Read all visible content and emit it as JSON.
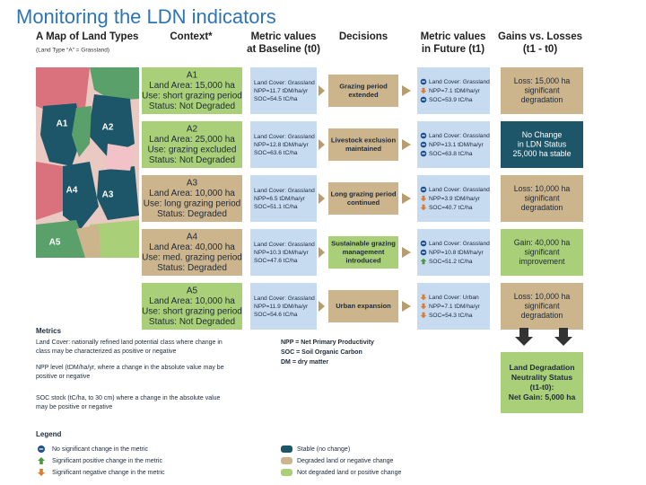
{
  "title": "Monitoring the LDN indicators",
  "headers": [
    {
      "lines": [
        "A Map of Land Types"
      ],
      "note": "(Land Type “A” = Grassland)"
    },
    {
      "lines": [
        "Context*"
      ]
    },
    {
      "lines": [
        "Metric values",
        "at Baseline (t0)"
      ]
    },
    {
      "lines": [
        "Decisions"
      ]
    },
    {
      "lines": [
        "Metric values",
        "in Future (t1)"
      ]
    },
    {
      "lines": [
        "Gains vs. Losses",
        "(t1 - t0)"
      ]
    }
  ],
  "map": {
    "labels": [
      "A1",
      "A2",
      "A3",
      "A4",
      "A5"
    ]
  },
  "rows": [
    {
      "context": [
        "A1",
        "Land Area: 15,000 ha",
        "Use: short grazing period",
        "Status: Not Degraded"
      ],
      "context_color": "#a9cf78",
      "baseline": [
        "Land Cover: Grassland",
        "NPP=11.7 tDM/ha/yr",
        "SOC=54.5 tC/ha"
      ],
      "decision": [
        "Grazing period",
        "extended"
      ],
      "decision_color": "#ccb48c",
      "future": [
        {
          "text": "Land Cover: Grassland",
          "trend": "stable"
        },
        {
          "text": "NPP=7.1 tDM/ha/yr",
          "trend": "down"
        },
        {
          "text": "SOC=53.9 tC/ha",
          "trend": "stable"
        }
      ],
      "result": [
        "Loss: 15,000 ha",
        "significant",
        "degradation"
      ],
      "result_color": "#ccb48c"
    },
    {
      "context": [
        "A2",
        "Land Area: 25,000 ha",
        "Use: grazing excluded",
        "Status: Not Degraded"
      ],
      "context_color": "#a9cf78",
      "baseline": [
        "Land Cover: Grassland",
        "NPP=12.8 tDM/ha/yr",
        "SOC=63.6 tC/ha"
      ],
      "decision": [
        "Livestock exclusion",
        "maintained"
      ],
      "decision_color": "#ccb48c",
      "future": [
        {
          "text": "Land Cover: Grassland",
          "trend": "stable"
        },
        {
          "text": "NPP=13.1 tDM/ha/yr",
          "trend": "stable"
        },
        {
          "text": "SOC=63.8 tC/ha",
          "trend": "stable"
        }
      ],
      "result": [
        "No Change",
        "in LDN Status",
        "25,000 ha stable"
      ],
      "result_color": "#1d5669"
    },
    {
      "context": [
        "A3",
        "Land Area: 10,000 ha",
        "Use: long grazing period",
        "Status: Degraded"
      ],
      "context_color": "#ccb48c",
      "baseline": [
        "Land Cover: Grassland",
        "NPP=6.5 tDM/ha/yr",
        "SOC=51.1 tC/ha"
      ],
      "decision": [
        "Long grazing period",
        "continued"
      ],
      "decision_color": "#ccb48c",
      "future": [
        {
          "text": "Land Cover: Grassland",
          "trend": "stable"
        },
        {
          "text": "NPP=3.9 tDM/ha/yr",
          "trend": "down"
        },
        {
          "text": "SOC=40.7 tC/ha",
          "trend": "down"
        }
      ],
      "result": [
        "Loss: 10,000 ha",
        "significant",
        "degradation"
      ],
      "result_color": "#ccb48c"
    },
    {
      "context": [
        "A4",
        "Land Area: 40,000 ha",
        "Use: med. grazing period",
        "Status: Degraded"
      ],
      "context_color": "#ccb48c",
      "baseline": [
        "Land Cover: Grassland",
        "NPP=10.3 tDM/ha/yr",
        "SOC=47.6 tC/ha"
      ],
      "decision": [
        "Sustainable grazing",
        "management",
        "introduced"
      ],
      "decision_color": "#a9cf78",
      "future": [
        {
          "text": "Land Cover: Grassland",
          "trend": "stable"
        },
        {
          "text": "NPP=10.8 tDM/ha/yr",
          "trend": "stable"
        },
        {
          "text": "SOC=51.2 tC/ha",
          "trend": "up"
        }
      ],
      "result": [
        "Gain: 40,000 ha",
        "significant",
        "improvement"
      ],
      "result_color": "#a9cf78"
    },
    {
      "context": [
        "A5",
        "Land Area: 10,000 ha",
        "Use: short grazing period",
        "Status: Not Degraded"
      ],
      "context_color": "#a9cf78",
      "baseline": [
        "Land Cover: Grassland",
        "NPP=11.9 tDM/ha/yr",
        "SOC=54.6 tC/ha"
      ],
      "decision": [
        "Urban expansion"
      ],
      "decision_color": "#ccb48c",
      "future": [
        {
          "text": "Land Cover: Urban",
          "trend": "down"
        },
        {
          "text": "NPP=7.1 tDM/ha/yr",
          "trend": "down"
        },
        {
          "text": "SOC=54.3 tC/ha",
          "trend": "down"
        }
      ],
      "result": [
        "Loss: 10,000 ha",
        "significant",
        "degradation"
      ],
      "result_color": "#ccb48c"
    }
  ],
  "outcome": [
    "Land Degradation",
    "Neutrality Status",
    "(t1-t0):",
    "Net Gain: 5,000 ha"
  ],
  "metrics": {
    "title": "Metrics",
    "notes": [
      [
        "Land Cover: nationally refined land potential class where change in",
        "class may be characterized as positive or negative"
      ],
      [
        "NPP level (tDM/ha/yr, where a change in the absolute value may be",
        "positive or negative"
      ],
      [
        "SOC stock (tC/ha, to 30 cm) where a change in the absolute value",
        "may be positive or negative"
      ]
    ],
    "abbreviations": [
      "NPP = Net Primary Productivity",
      "SOC = Soil Organic Carbon",
      "DM = dry matter"
    ]
  },
  "legend": {
    "title": "Legend",
    "icons": [
      {
        "trend": "stable",
        "text": "No significant change in the metric"
      },
      {
        "trend": "up",
        "text": "Significant positive change in the metric"
      },
      {
        "trend": "down",
        "text": "Significant negative change in the metric"
      }
    ],
    "colors": [
      {
        "color": "#1d5669",
        "text": "Stable (no change)"
      },
      {
        "color": "#ccb48c",
        "text": "Degraded land or negative change"
      },
      {
        "color": "#a9cf78",
        "text": "Not degraded land or positive change"
      }
    ]
  }
}
